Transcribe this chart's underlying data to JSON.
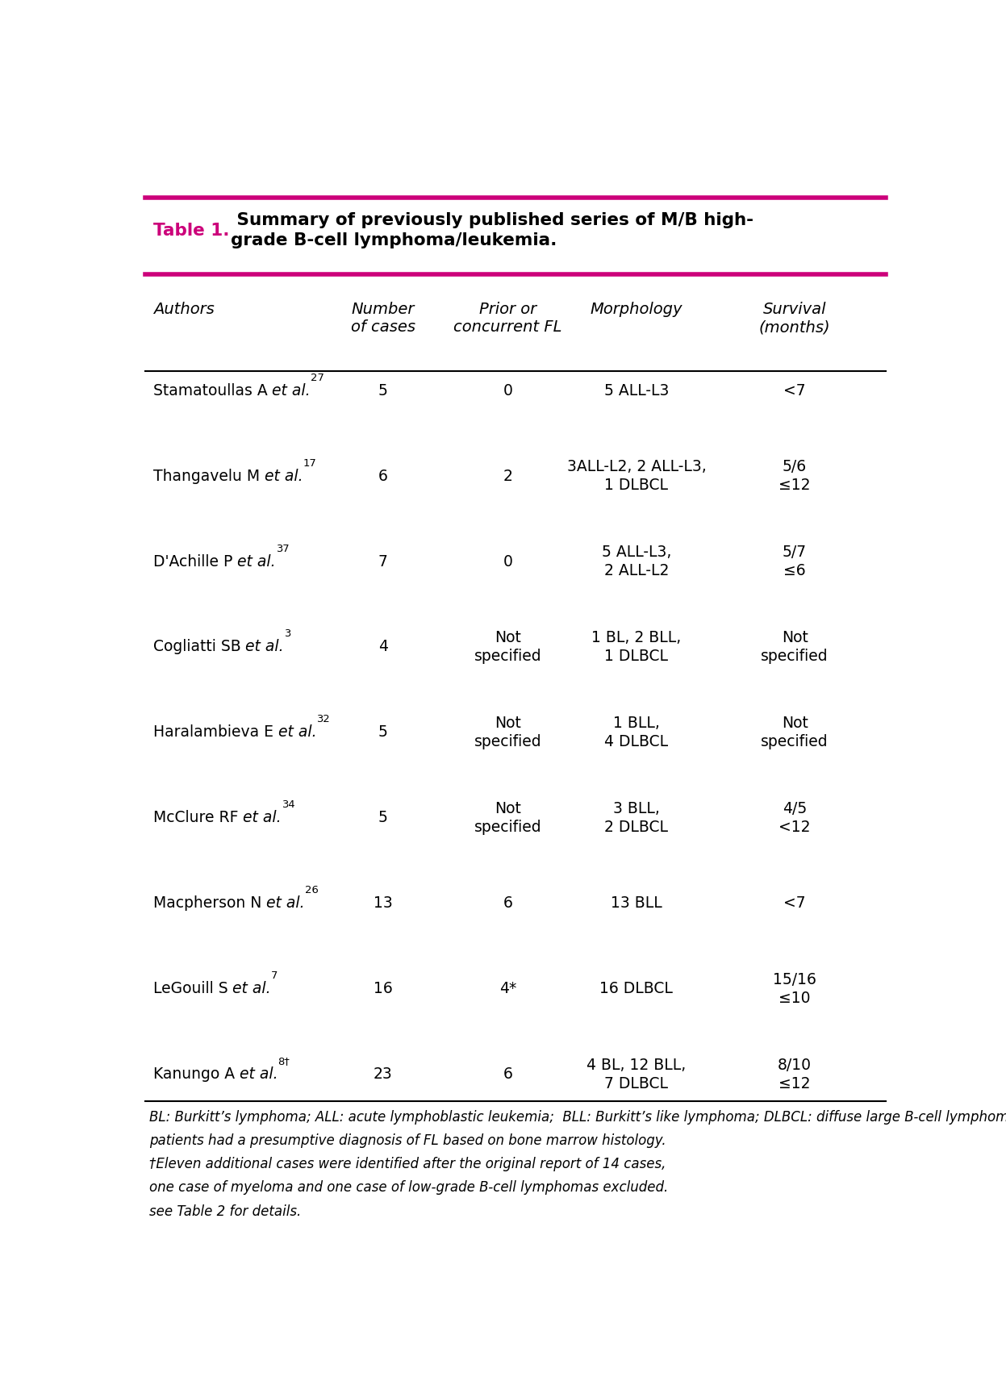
{
  "title_label": "Table 1.",
  "title_rest": " Summary of previously published series of M/B high-\ngrade B-cell lymphoma/leukemia.",
  "magenta_color": "#CC007A",
  "background_color": "#FFFFFF",
  "headers": [
    "Authors",
    "Number\nof cases",
    "Prior or\nconcurrent FL",
    "Morphology",
    "Survival\n(months)"
  ],
  "rows": [
    {
      "author_name": "Stamatoullas A",
      "author_ref": " et al.",
      "author_sup": "27",
      "number": "5",
      "prior": "0",
      "morphology": "5 ALL-L3",
      "survival": "<7"
    },
    {
      "author_name": "Thangavelu M",
      "author_ref": " et al.",
      "author_sup": "17",
      "number": "6",
      "prior": "2",
      "morphology": "3ALL-L2, 2 ALL-L3,\n1 DLBCL",
      "survival": "5/6\n≤12"
    },
    {
      "author_name": "D'Achille P",
      "author_ref": " et al.",
      "author_sup": "37",
      "number": "7",
      "prior": "0",
      "morphology": "5 ALL-L3,\n2 ALL-L2",
      "survival": "5/7\n≤6"
    },
    {
      "author_name": "Cogliatti SB",
      "author_ref": " et al.",
      "author_sup": "3",
      "number": "4",
      "prior": "Not\nspecified",
      "morphology": "1 BL, 2 BLL,\n1 DLBCL",
      "survival": "Not\nspecified"
    },
    {
      "author_name": "Haralambieva E",
      "author_ref": " et al.",
      "author_sup": "32",
      "number": "5",
      "prior": "Not\nspecified",
      "morphology": "1 BLL,\n4 DLBCL",
      "survival": "Not\nspecified"
    },
    {
      "author_name": "McClure RF",
      "author_ref": " et al.",
      "author_sup": "34",
      "number": "5",
      "prior": "Not\nspecified",
      "morphology": "3 BLL,\n2 DLBCL",
      "survival": "4/5\n<12"
    },
    {
      "author_name": "Macpherson N",
      "author_ref": " et al.",
      "author_sup": "26",
      "number": "13",
      "prior": "6",
      "morphology": "13 BLL",
      "survival": "<7"
    },
    {
      "author_name": "LeGouill S",
      "author_ref": " et al.",
      "author_sup": "7",
      "number": "16",
      "prior": "4*",
      "morphology": "16 DLBCL",
      "survival": "15/16\n≤10"
    },
    {
      "author_name": "Kanungo A",
      "author_ref": " et al.",
      "author_sup": "8†",
      "number": "23",
      "prior": "6",
      "morphology": "4 BL, 12 BLL,\n7 DLBCL",
      "survival": "8/10\n≤12"
    }
  ],
  "footnote_lines": [
    "BL: Burkitt’s lymphoma; ALL: acute lymphoblastic leukemia;  BLL: Burkitt’s like lymphoma; DLBCL: diffuse large B-cell lymphoma; *Two of the four",
    "patients had a presumptive diagnosis of FL based on bone marrow histology.",
    "†Eleven additional cases were identified after the original report of 14 cases,",
    "one case of myeloma and one case of low-grade B-cell lymphomas excluded.",
    "see Table 2 for details."
  ],
  "font_size_title": 15.5,
  "font_size_header": 14.0,
  "font_size_data": 13.5,
  "font_size_footnote": 12.0,
  "lw_magenta": 4.0,
  "lw_black": 1.5
}
